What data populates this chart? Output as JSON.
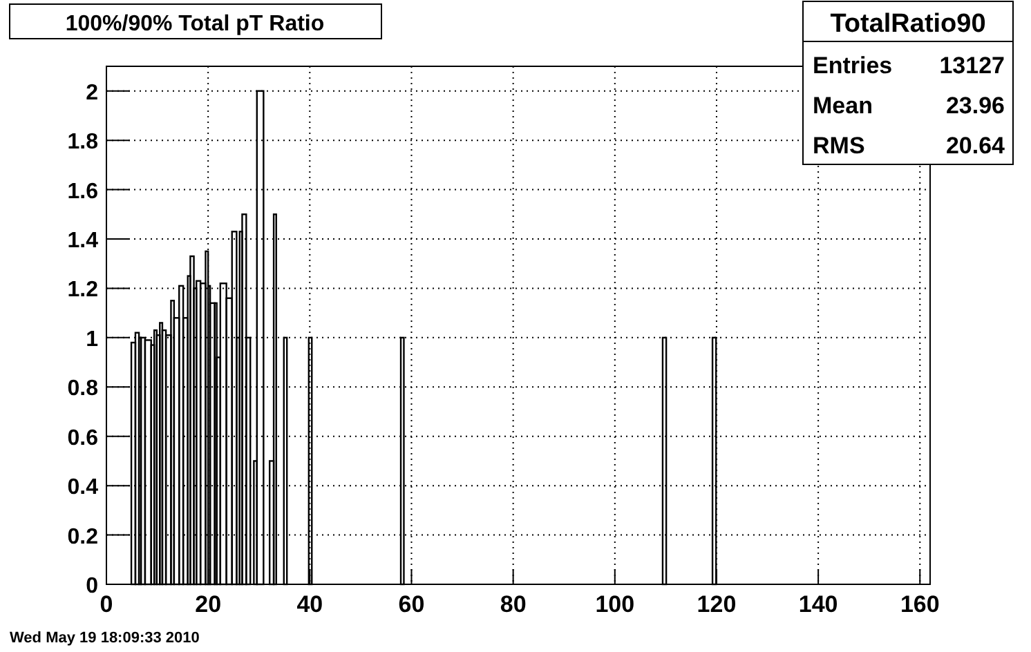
{
  "chart_data": {
    "type": "histogram",
    "title": "100%/90% Total pT Ratio",
    "legend_title": "TotalRatio90",
    "annotations": [
      "Entries 13127",
      "Mean 23.96",
      "RMS 20.64",
      "Wed May 19 18:09:33 2010"
    ],
    "bins": [
      4.9,
      5.7,
      6.4,
      6.8,
      7.6,
      8.8,
      9.4,
      9.9,
      10.5,
      11.0,
      11.7,
      12.7,
      13.3,
      14.3,
      15.1,
      16.0,
      16.5,
      17.2,
      17.7,
      18.5,
      19.5,
      20.0,
      20.4,
      21.3,
      21.7,
      22.4,
      23.6,
      24.7,
      25.6,
      26.2,
      26.7,
      27.5,
      28.3,
      29.0,
      29.6,
      30.9,
      32.1,
      32.9,
      33.4,
      34.9,
      35.5,
      39.8,
      40.4,
      57.9,
      58.5,
      109.4,
      110.1,
      119.2,
      119.9
    ],
    "values": [
      0.98,
      1.02,
      1.0,
      1.0,
      0.99,
      0.97,
      1.03,
      1.01,
      1.06,
      1.03,
      1.01,
      1.15,
      1.08,
      1.21,
      1.08,
      1.25,
      1.33,
      1.2,
      1.23,
      1.22,
      1.35,
      1.21,
      1.14,
      1.14,
      0.92,
      1.22,
      1.16,
      1.43,
      1.0,
      1.43,
      1.5,
      1.0,
      0,
      0.5,
      2,
      0,
      0.5,
      1.5,
      0,
      1,
      0,
      1,
      0,
      1,
      0,
      1,
      0,
      1
    ],
    "color": "#000000",
    "xlim": [
      0,
      162
    ],
    "xticks": [
      0,
      20,
      40,
      60,
      80,
      100,
      120,
      140,
      160
    ],
    "ylim": [
      0,
      2.1
    ],
    "yticks": [
      0,
      0.2,
      0.4,
      0.6,
      0.8,
      1,
      1.2,
      1.4,
      1.6,
      1.8,
      2
    ],
    "grid": true
  }
}
